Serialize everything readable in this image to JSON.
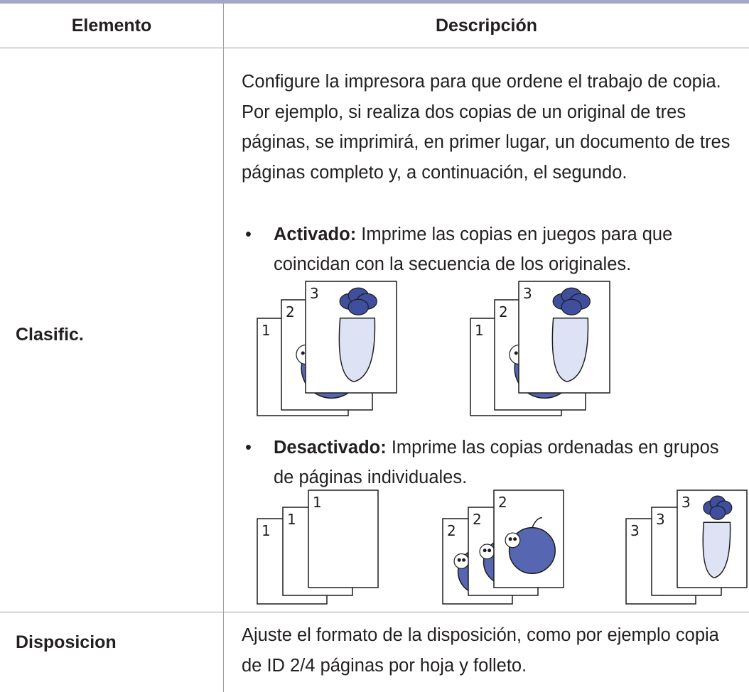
{
  "table": {
    "headers": [
      "Elemento",
      "Descripción"
    ],
    "rows": [
      {
        "item": "Clasific.",
        "description": "Configure la impresora para que ordene el trabajo de copia. Por ejemplo, si realiza dos copias de un original de tres páginas, se imprimirá, en primer lugar, un documento de tres páginas completo y, a continuación, el segundo.",
        "options": [
          {
            "label": "Activado:",
            "text": "Imprime las copias en juegos para que coincidan con la secuencia de los originales."
          },
          {
            "label": "Desactivado:",
            "text": "Imprime las copias ordenadas en grupos de páginas individuales."
          }
        ]
      },
      {
        "item": "Disposicion",
        "description": "Ajuste el formato de la disposición, como por ejemplo copia de ID 2/4 páginas por hoja y folleto."
      }
    ]
  },
  "illustrations": {
    "activado": [
      [
        "1",
        "2",
        "3"
      ],
      [
        "1",
        "2",
        "3"
      ]
    ],
    "desactivado": [
      [
        "1",
        "1",
        "1"
      ],
      [
        "2",
        "2",
        "2"
      ],
      [
        "3",
        "3",
        "3"
      ]
    ]
  }
}
